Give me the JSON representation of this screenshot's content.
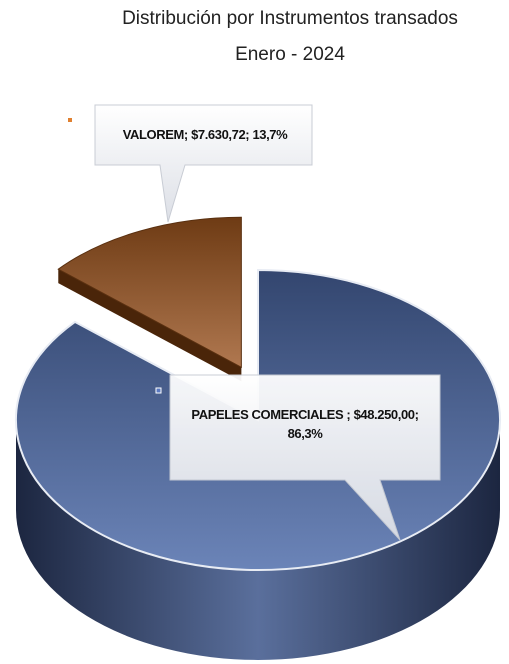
{
  "chart_data": {
    "type": "pie",
    "title": [
      "Distribución por Instrumentos transados",
      "Enero - 2024"
    ],
    "categories": [
      "PAPELES COMERCIALES",
      "VALOREM"
    ],
    "values": [
      48250,
      7630.72
    ],
    "data_labels": [
      "PAPELES COMERCIALES ; $48.250,00; 86,3%",
      "VALOREM; $7.630,72; 13,7%"
    ],
    "colors": [
      "#3e5282",
      "#7a461f"
    ]
  }
}
